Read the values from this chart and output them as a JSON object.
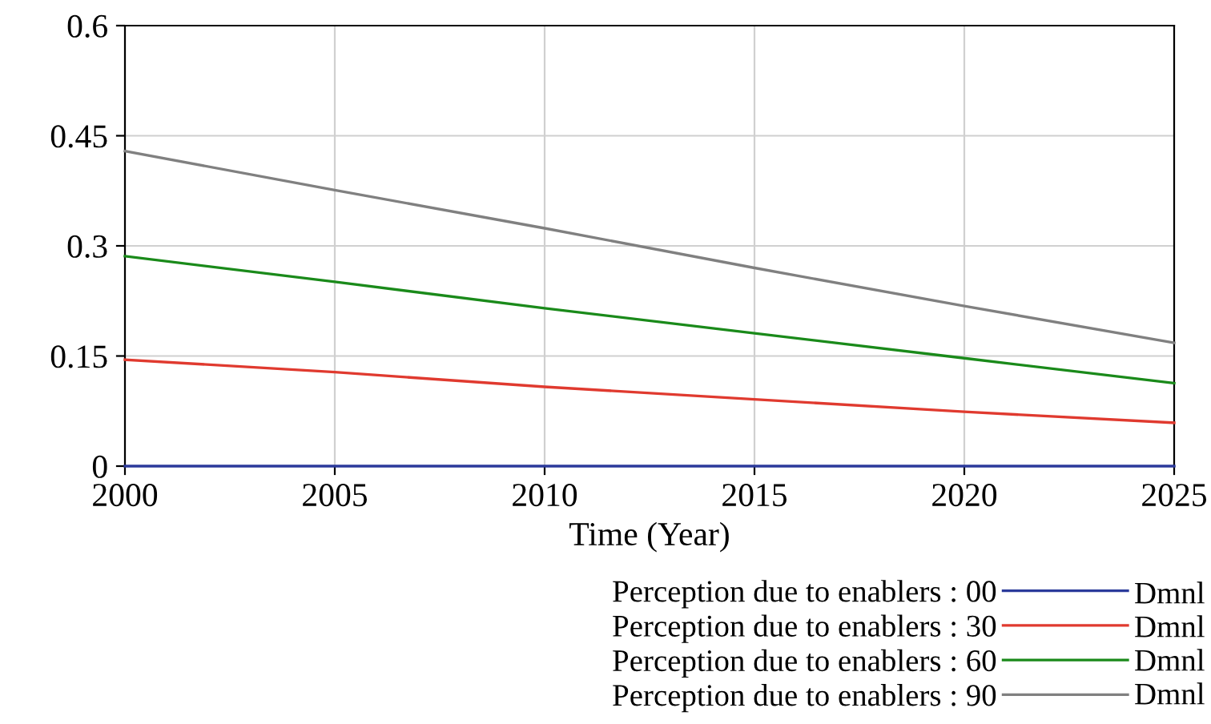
{
  "chart_data": {
    "type": "line",
    "xlabel": "Time (Year)",
    "x": [
      2000,
      2005,
      2010,
      2015,
      2020,
      2025
    ],
    "xlim": [
      2000,
      2025
    ],
    "xticks": [
      2000,
      2005,
      2010,
      2015,
      2020,
      2025
    ],
    "ylim": [
      0,
      0.6
    ],
    "yticks": [
      0,
      0.15,
      0.3,
      0.45,
      0.6
    ],
    "grid": true,
    "legend": "bottom",
    "series": [
      {
        "name": "Perception due to enablers : 00",
        "color": "#2b3a9b",
        "values": [
          0,
          0,
          0,
          0,
          0,
          0
        ]
      },
      {
        "name": "Perception due to enablers : 30",
        "color": "#e03a2f",
        "values": [
          0.145,
          0.128,
          0.108,
          0.091,
          0.074,
          0.059
        ]
      },
      {
        "name": "Perception due to enablers : 60",
        "color": "#1a8a1a",
        "values": [
          0.286,
          0.251,
          0.215,
          0.181,
          0.147,
          0.113
        ]
      },
      {
        "name": "Perception due to enablers : 90",
        "color": "#808080",
        "values": [
          0.429,
          0.376,
          0.324,
          0.27,
          0.218,
          0.168
        ]
      }
    ],
    "annotations": [
      "Dmnl",
      "Dmnl",
      "Dmnl",
      "Dmnl"
    ]
  }
}
